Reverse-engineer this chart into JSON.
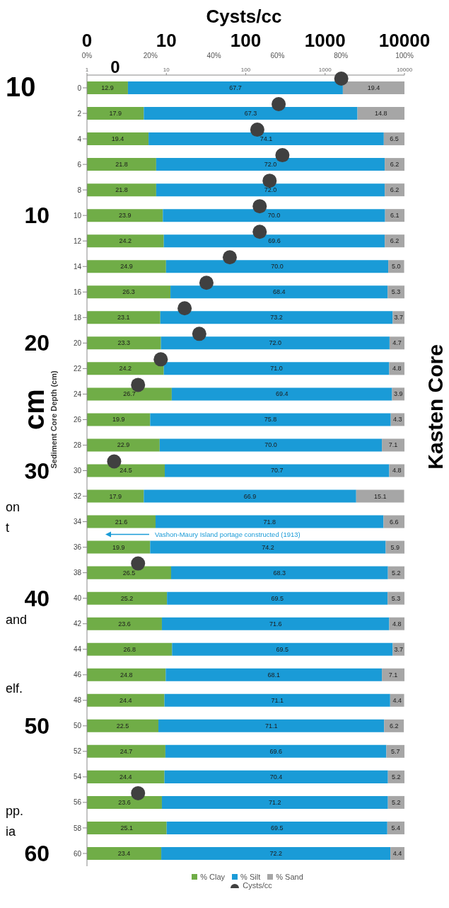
{
  "chart_data": {
    "type": "bar",
    "title": "Cysts/cc",
    "orientation": "horizontal",
    "stacked": true,
    "ylabel": "Sediment Core Depth (cm)",
    "legend": "bottom",
    "log": "x2",
    "marker": "circle",
    "categories": [
      "0",
      "2",
      "4",
      "6",
      "8",
      "10",
      "12",
      "14",
      "16",
      "18",
      "20",
      "22",
      "24",
      "26",
      "28",
      "30",
      "32",
      "34",
      "36",
      "38",
      "40",
      "42",
      "44",
      "46",
      "48",
      "50",
      "52",
      "54",
      "56",
      "58",
      "60"
    ],
    "xlim": [
      0,
      100
    ],
    "xticks": [
      {
        "value": 0,
        "label": "0%"
      },
      {
        "value": 20,
        "label": "20%"
      },
      {
        "value": 40,
        "label": "40%"
      },
      {
        "value": 60,
        "label": "60%"
      },
      {
        "value": 80,
        "label": "80%"
      },
      {
        "value": 100,
        "label": "100%"
      }
    ],
    "x2lim": [
      1,
      10000
    ],
    "x2ticks": [
      1,
      10,
      100,
      1000,
      10000
    ],
    "series": [
      {
        "name": "% Clay",
        "type": "bar",
        "color": "#70ad47",
        "values": [
          12.9,
          17.9,
          19.4,
          21.8,
          21.8,
          23.9,
          24.2,
          24.9,
          26.3,
          23.1,
          23.3,
          24.2,
          26.7,
          19.9,
          22.9,
          24.5,
          17.9,
          21.6,
          19.9,
          26.5,
          25.2,
          23.6,
          26.8,
          24.8,
          24.4,
          22.5,
          24.7,
          24.4,
          23.6,
          25.1,
          23.4
        ],
        "value_labels": [
          "12.9",
          "17.9",
          "19.4",
          "21.8",
          "21.8",
          "23.9",
          "24.2",
          "24.9",
          "26.3",
          "23.1",
          "23.3",
          "24.2",
          "26.7",
          "19.9",
          "22.9",
          "24.5",
          "17.9",
          "21.6",
          "19.9",
          "26.5",
          "25.2",
          "23.6",
          "26.8",
          "24.8",
          "24.4",
          "22.5",
          "24.7",
          "24.4",
          "23.6",
          "25.1",
          "23.4"
        ]
      },
      {
        "name": "% Silt",
        "type": "bar",
        "color": "#1a9bd7",
        "values": [
          67.7,
          67.3,
          74.1,
          72.0,
          72.0,
          70.0,
          69.6,
          70.0,
          68.4,
          73.2,
          72.0,
          71.0,
          69.4,
          75.8,
          70.0,
          70.7,
          66.9,
          71.8,
          74.2,
          68.3,
          69.5,
          71.6,
          69.5,
          68.1,
          71.1,
          71.1,
          69.6,
          70.4,
          71.2,
          69.5,
          72.2
        ],
        "value_labels": [
          "67.7",
          "67.3",
          "74.1",
          "72.0",
          "72.0",
          "70.0",
          "69.6",
          "70.0",
          "68.4",
          "73.2",
          "72.0",
          "71.0",
          "69.4",
          "75.8",
          "70.0",
          "70.7",
          "66.9",
          "71.8",
          "74.2",
          "68.3",
          "69.5",
          "71.6",
          "69.5",
          "68.1",
          "71.1",
          "71.1",
          "69.6",
          "70.4",
          "71.2",
          "69.5",
          "72.2"
        ]
      },
      {
        "name": "% Sand",
        "type": "bar",
        "color": "#a6a6a6",
        "values": [
          19.4,
          14.8,
          6.5,
          6.2,
          6.2,
          6.1,
          6.2,
          5.0,
          5.3,
          3.7,
          4.7,
          4.8,
          3.9,
          4.3,
          7.1,
          4.8,
          15.1,
          6.6,
          5.9,
          5.2,
          5.3,
          4.8,
          3.7,
          7.1,
          4.4,
          6.2,
          5.7,
          5.2,
          5.2,
          5.4,
          4.4
        ],
        "value_labels": [
          "19.4",
          "14.8",
          "6.5",
          "6.2",
          "6.2",
          "6.1",
          "6.2",
          "5.0",
          "5.3",
          "3.7",
          "4.7",
          "4.8",
          "3.9",
          "4.3",
          "7.1",
          "4.8",
          "15.1",
          "6.6",
          "5.9",
          "5.2",
          "5.3",
          "4.8",
          "3.7",
          "7.1",
          "4.4",
          "6.2",
          "5.7",
          "5.2",
          "5.2",
          "5.4",
          "4.4"
        ]
      },
      {
        "name": "Cysts/cc",
        "type": "scatter",
        "axis": "x2",
        "color": "#404040",
        "values": [
          1600,
          260,
          140,
          290,
          200,
          150,
          150,
          63,
          32,
          17,
          26,
          8.5,
          4.4,
          null,
          null,
          2.2,
          null,
          null,
          null,
          4.4,
          null,
          null,
          null,
          null,
          null,
          null,
          null,
          null,
          4.4,
          null,
          null
        ]
      }
    ],
    "annotations": [
      "0",
      "10",
      "100",
      "1000",
      "10000",
      "10",
      "0",
      "10",
      "20",
      "30",
      "40",
      "50",
      "60",
      "cm",
      "Kasten Core",
      "on",
      "t",
      "and",
      "elf.",
      "pp.",
      "ia",
      "Vashon-Maury Island portage constructed (1913)"
    ]
  }
}
